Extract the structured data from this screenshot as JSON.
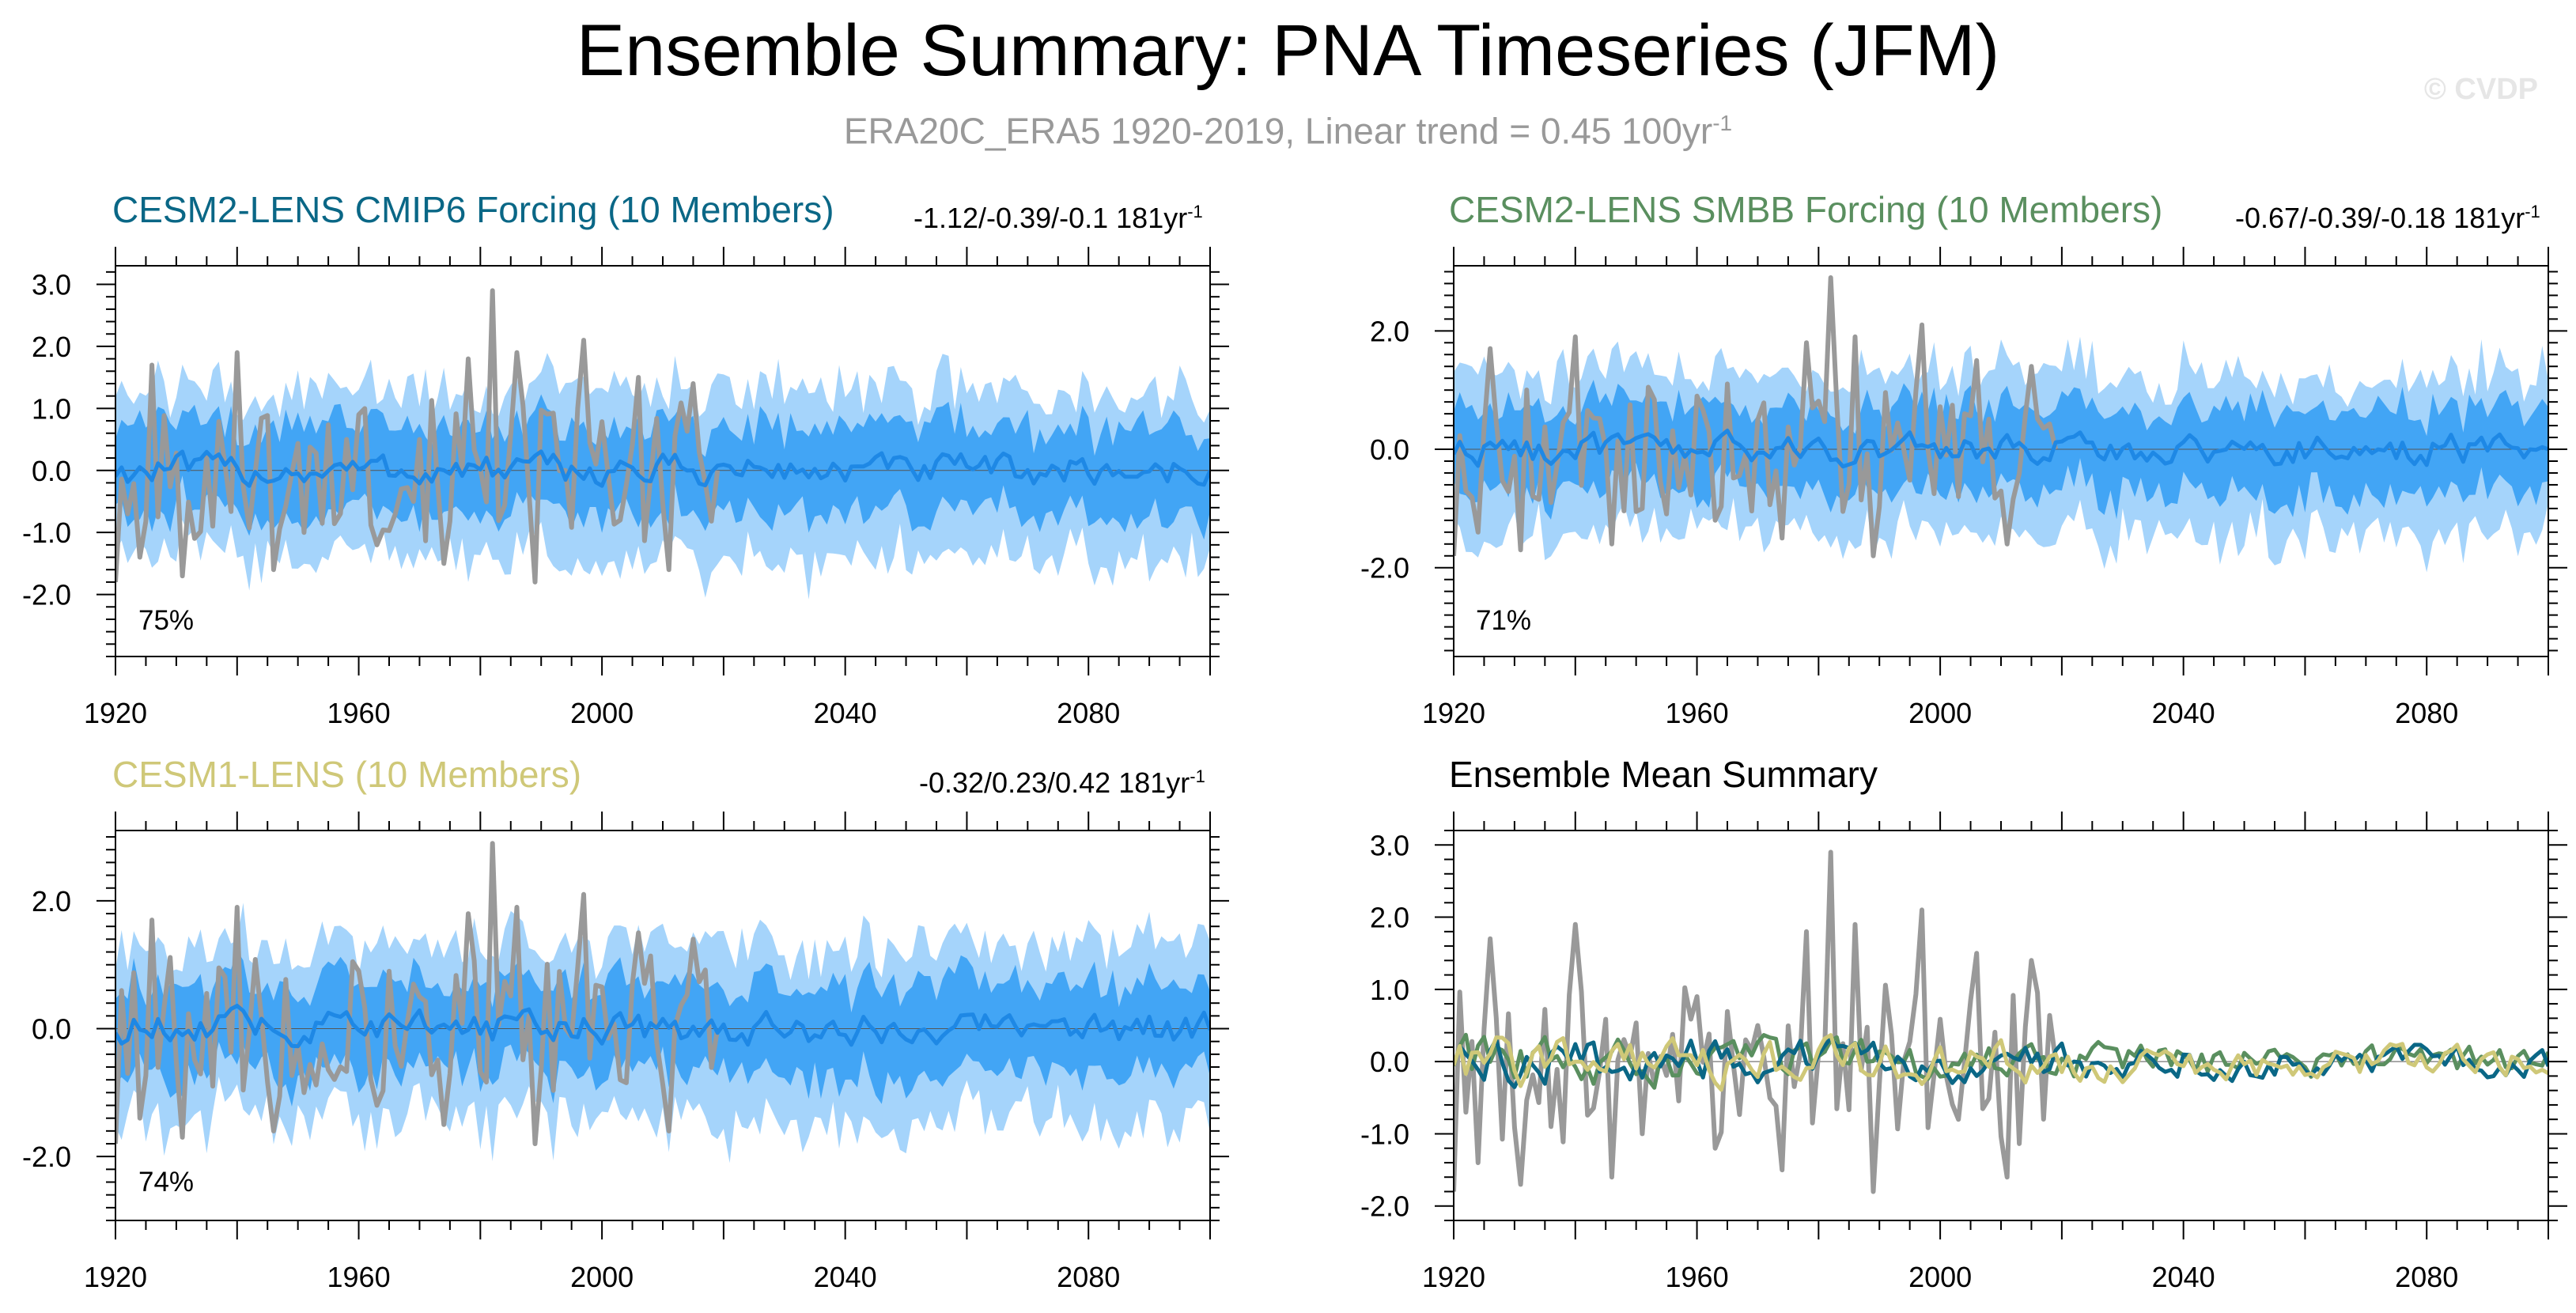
{
  "title": "Ensemble Summary: PNA Timeseries (JFM)",
  "subtitle": {
    "text": "ERA20C_ERA5 1920-2019, Linear trend = 0.45 100yr",
    "unit_exponent": "-1"
  },
  "watermark": "© CVDP",
  "colors": {
    "observation": "#999999",
    "ensemble_mean_blue": "#1e88e5",
    "spread_25_75": "#42a5f5",
    "spread_range": "#a5d4fb",
    "cmip6": "#0a6786",
    "smbb": "#5a8f5f",
    "cesm1": "#cfc878"
  },
  "chart_data": [
    {
      "id": "cmip6",
      "type": "line",
      "title": "CESM2-LENS CMIP6 Forcing (10 Members)",
      "title_color": "#0a6786",
      "trend_text": "-1.12/-0.39/-0.1 181yr",
      "trend_exponent": "-1",
      "percent_text": "75%",
      "xlim": [
        1920,
        2100
      ],
      "ylim": [
        -3.0,
        3.3
      ],
      "yticks": [
        -2.0,
        -1.0,
        0.0,
        1.0,
        2.0,
        3.0
      ],
      "ytick_labels": [
        "-2.0",
        "-1.0",
        "0.0",
        "1.0",
        "2.0",
        "3.0"
      ],
      "xticks": [
        1920,
        1960,
        2000,
        2040,
        2080
      ],
      "xtick_labels": [
        "1920",
        "1960",
        "2000",
        "2040",
        "2080"
      ],
      "series": [
        {
          "name": "ERA20C_ERA5",
          "x_start": 1920,
          "x_end": 2019,
          "key_points": [
            [
              1920,
              -1.8
            ],
            [
              1922,
              -0.7
            ],
            [
              1924,
              -1.4
            ],
            [
              1926,
              1.7
            ],
            [
              1931,
              -1.7
            ],
            [
              1936,
              -0.9
            ],
            [
              1940,
              1.9
            ],
            [
              1946,
              -1.6
            ],
            [
              1951,
              -1.0
            ],
            [
              1960,
              0.9
            ],
            [
              1963,
              -1.2
            ],
            [
              1970,
              0.5
            ],
            [
              1974,
              -1.5
            ],
            [
              1978,
              1.8
            ],
            [
              1982,
              2.9
            ],
            [
              1986,
              1.9
            ],
            [
              1989,
              -1.8
            ],
            [
              1994,
              0.0
            ],
            [
              1997,
              2.1
            ],
            [
              2003,
              -0.8
            ],
            [
              2006,
              1.5
            ],
            [
              2011,
              -1.6
            ],
            [
              2015,
              1.4
            ],
            [
              2019,
              0.0
            ]
          ],
          "amplitude": 0.95
        },
        {
          "name": "Ensemble Mean",
          "x_start": 1920,
          "x_end": 2100,
          "amplitude": 0.25
        }
      ]
    },
    {
      "id": "smbb",
      "type": "line",
      "title": "CESM2-LENS SMBB Forcing (10 Members)",
      "title_color": "#5a8f5f",
      "trend_text": "-0.67/-0.39/-0.18 181yr",
      "trend_exponent": "-1",
      "percent_text": "71%",
      "xlim": [
        1920,
        2100
      ],
      "ylim": [
        -3.5,
        3.1
      ],
      "yticks": [
        -2.0,
        0.0,
        2.0
      ],
      "ytick_labels": [
        "-2.0",
        "0.0",
        "2.0"
      ],
      "xticks": [
        1920,
        1960,
        2000,
        2040,
        2080
      ],
      "xtick_labels": [
        "1920",
        "1960",
        "2000",
        "2040",
        "2080"
      ],
      "series": [
        {
          "name": "ERA20C_ERA5",
          "x_start": 1920,
          "x_end": 2019,
          "amplitude": 0.95
        },
        {
          "name": "Ensemble Mean",
          "x_start": 1920,
          "x_end": 2100,
          "amplitude": 0.25
        }
      ]
    },
    {
      "id": "cesm1",
      "type": "line",
      "title": "CESM1-LENS (10 Members)",
      "title_color": "#cfc878",
      "trend_text": "-0.32/0.23/0.42 181yr",
      "trend_exponent": "-1",
      "percent_text": "74%",
      "xlim": [
        1920,
        2100
      ],
      "ylim": [
        -3.0,
        3.1
      ],
      "yticks": [
        -2.0,
        0.0,
        2.0
      ],
      "ytick_labels": [
        "-2.0",
        "0.0",
        "2.0"
      ],
      "xticks": [
        1920,
        1960,
        2000,
        2040,
        2080
      ],
      "xtick_labels": [
        "1920",
        "1960",
        "2000",
        "2040",
        "2080"
      ],
      "series": [
        {
          "name": "ERA20C_ERA5",
          "x_start": 1920,
          "x_end": 2019,
          "amplitude": 0.95
        },
        {
          "name": "Ensemble Mean",
          "x_start": 1920,
          "x_end": 2100,
          "amplitude": 0.25
        }
      ]
    },
    {
      "id": "summary",
      "type": "line",
      "title": "Ensemble Mean Summary",
      "title_color": "#000000",
      "xlim": [
        1920,
        2100
      ],
      "ylim": [
        -2.2,
        3.2
      ],
      "yticks": [
        -2.0,
        -1.0,
        0.0,
        1.0,
        2.0,
        3.0
      ],
      "ytick_labels": [
        "-2.0",
        "-1.0",
        "0.0",
        "1.0",
        "2.0",
        "3.0"
      ],
      "xticks": [
        1920,
        1960,
        2000,
        2040,
        2080
      ],
      "xtick_labels": [
        "1920",
        "1960",
        "2000",
        "2040",
        "2080"
      ],
      "series": [
        {
          "name": "ERA20C_ERA5",
          "x_start": 1920,
          "x_end": 2019,
          "amplitude": 0.95
        },
        {
          "name": "CESM2-LENS CMIP6 Forcing",
          "x_start": 1920,
          "x_end": 2100,
          "amplitude": 0.35
        },
        {
          "name": "CESM2-LENS SMBB Forcing",
          "x_start": 1920,
          "x_end": 2100,
          "amplitude": 0.35
        },
        {
          "name": "CESM1-LENS",
          "x_start": 1920,
          "x_end": 2100,
          "amplitude": 0.35
        }
      ]
    }
  ]
}
